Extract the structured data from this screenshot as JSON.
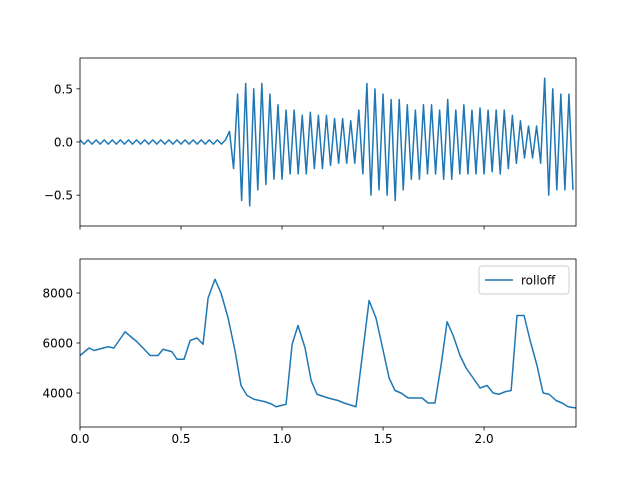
{
  "chart_data": [
    {
      "type": "line",
      "color": "#1f77b4",
      "x": [
        0,
        0.02,
        0.04,
        0.06,
        0.08,
        0.1,
        0.12,
        0.14,
        0.16,
        0.18,
        0.2,
        0.22,
        0.24,
        0.26,
        0.28,
        0.3,
        0.32,
        0.34,
        0.36,
        0.38,
        0.4,
        0.42,
        0.44,
        0.46,
        0.48,
        0.5,
        0.52,
        0.54,
        0.56,
        0.58,
        0.6,
        0.62,
        0.64,
        0.66,
        0.68,
        0.7,
        0.72,
        0.74,
        0.76,
        0.78,
        0.8,
        0.82,
        0.84,
        0.86,
        0.88,
        0.9,
        0.92,
        0.94,
        0.96,
        0.98,
        1,
        1.02,
        1.04,
        1.06,
        1.08,
        1.1,
        1.12,
        1.14,
        1.16,
        1.18,
        1.2,
        1.22,
        1.24,
        1.26,
        1.28,
        1.3,
        1.32,
        1.34,
        1.36,
        1.38,
        1.4,
        1.42,
        1.44,
        1.46,
        1.48,
        1.5,
        1.52,
        1.54,
        1.56,
        1.58,
        1.6,
        1.62,
        1.64,
        1.66,
        1.68,
        1.7,
        1.72,
        1.74,
        1.76,
        1.78,
        1.8,
        1.82,
        1.84,
        1.86,
        1.88,
        1.9,
        1.92,
        1.94,
        1.96,
        1.98,
        2,
        2.02,
        2.04,
        2.06,
        2.08,
        2.1,
        2.12,
        2.14,
        2.16,
        2.18,
        2.2,
        2.22,
        2.24,
        2.26,
        2.28,
        2.3,
        2.32,
        2.34,
        2.36,
        2.38,
        2.4,
        2.42,
        2.44
      ],
      "values": [
        0.02,
        -0.02,
        0.02,
        -0.02,
        0.02,
        -0.02,
        0.02,
        -0.02,
        0.02,
        -0.02,
        0.02,
        -0.02,
        0.02,
        -0.02,
        0.02,
        -0.02,
        0.02,
        -0.02,
        0.02,
        -0.02,
        0.02,
        -0.02,
        0.02,
        -0.02,
        0.02,
        -0.02,
        0.02,
        -0.02,
        0.02,
        -0.02,
        0.02,
        -0.02,
        0.02,
        -0.02,
        0.02,
        -0.02,
        0.02,
        0.1,
        -0.25,
        0.45,
        -0.55,
        0.55,
        -0.6,
        0.5,
        -0.45,
        0.55,
        -0.4,
        0.45,
        -0.35,
        0.35,
        -0.35,
        0.3,
        -0.3,
        0.3,
        -0.3,
        0.25,
        -0.3,
        0.28,
        -0.25,
        0.25,
        -0.25,
        0.25,
        -0.22,
        0.22,
        -0.2,
        0.22,
        -0.2,
        0.2,
        -0.2,
        0.3,
        -0.3,
        0.55,
        -0.5,
        0.5,
        -0.45,
        0.45,
        -0.5,
        0.4,
        -0.55,
        0.4,
        -0.45,
        0.35,
        -0.35,
        0.3,
        -0.35,
        0.35,
        -0.3,
        0.35,
        -0.3,
        0.3,
        -0.35,
        0.4,
        -0.35,
        0.3,
        -0.3,
        0.35,
        -0.3,
        0.3,
        -0.3,
        0.32,
        -0.3,
        0.3,
        -0.28,
        0.3,
        -0.3,
        0.3,
        -0.25,
        0.25,
        -0.2,
        0.2,
        -0.15,
        0.15,
        -0.15,
        0.15,
        -0.2,
        0.6,
        -0.5,
        0.5,
        -0.45,
        0.45,
        -0.45,
        0.45,
        -0.45
      ],
      "xlim": [
        0,
        2.455
      ],
      "ylim": [
        -0.79,
        0.79
      ],
      "xticks": [
        0,
        0.5,
        1,
        1.5,
        2
      ],
      "xtick_labels": false,
      "yticks": [
        {
          "value": -0.5,
          "label": "−0.5"
        },
        {
          "value": 0,
          "label": "0.0"
        },
        0.5
      ]
    },
    {
      "type": "line",
      "legend": "upper right",
      "x": [
        0,
        0.045,
        0.069,
        0.139,
        0.168,
        0.223,
        0.252,
        0.282,
        0.312,
        0.347,
        0.386,
        0.411,
        0.455,
        0.48,
        0.515,
        0.545,
        0.579,
        0.609,
        0.634,
        0.668,
        0.698,
        0.733,
        0.767,
        0.797,
        0.827,
        0.861,
        0.916,
        0.95,
        0.97,
        1.02,
        1.05,
        1.079,
        1.114,
        1.144,
        1.173,
        1.228,
        1.277,
        1.307,
        1.366,
        1.431,
        1.465,
        1.495,
        1.53,
        1.559,
        1.589,
        1.624,
        1.693,
        1.723,
        1.757,
        1.787,
        1.817,
        1.847,
        1.881,
        1.911,
        1.946,
        1.98,
        2.015,
        2.045,
        2.074,
        2.104,
        2.134,
        2.163,
        2.198,
        2.228,
        2.262,
        2.292,
        2.322,
        2.356,
        2.386,
        2.416,
        2.455
      ],
      "series": [
        {
          "name": "rolloff",
          "color": "#1f77b4",
          "values": [
            5500,
            5800,
            5700,
            5850,
            5800,
            6450,
            6250,
            6050,
            5800,
            5500,
            5500,
            5750,
            5650,
            5350,
            5350,
            6100,
            6200,
            5950,
            7800,
            8550,
            8000,
            7000,
            5700,
            4300,
            3900,
            3750,
            3650,
            3550,
            3450,
            3550,
            5950,
            6700,
            5800,
            4500,
            3950,
            3800,
            3700,
            3600,
            3450,
            7700,
            7000,
            5900,
            4600,
            4100,
            4000,
            3800,
            3800,
            3600,
            3600,
            5100,
            6850,
            6300,
            5500,
            5000,
            4600,
            4200,
            4300,
            4000,
            3950,
            4050,
            4100,
            7100,
            7100,
            6100,
            5100,
            4000,
            3950,
            3700,
            3600,
            3450,
            3400
          ]
        }
      ],
      "xlim": [
        0,
        2.455
      ],
      "ylim": [
        2640,
        9360
      ],
      "xticks": [
        {
          "value": 0,
          "label": "0.0"
        },
        0.5,
        {
          "value": 1,
          "label": "1.0"
        },
        1.5,
        {
          "value": 2,
          "label": "2.0"
        }
      ],
      "yticks": [
        4000,
        6000,
        8000
      ]
    }
  ]
}
